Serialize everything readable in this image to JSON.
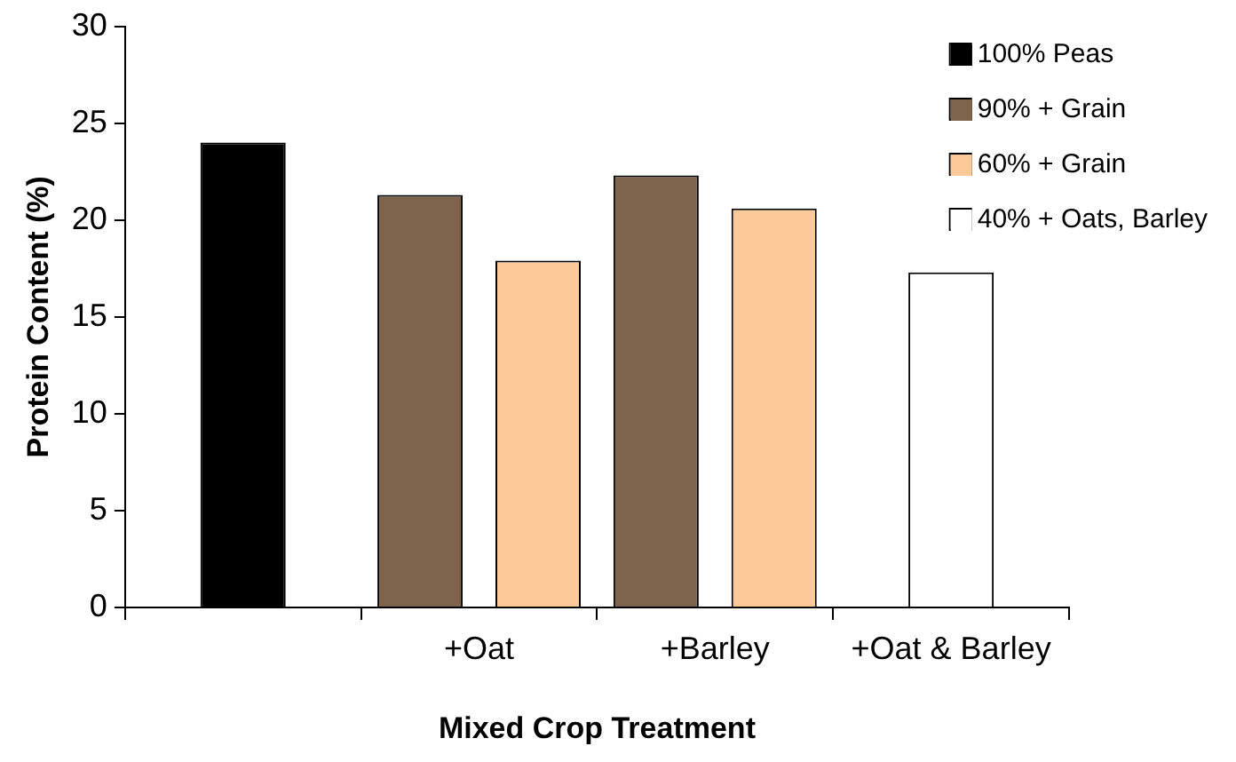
{
  "chart_data": {
    "type": "bar",
    "xlabel": "Mixed Crop Treatment",
    "ylabel": "Protein Content (%)",
    "categories": [
      null,
      "+Oat",
      "+Barley",
      "+Oat & Barley"
    ],
    "series": [
      {
        "name": "100% Peas",
        "color": "#000000",
        "values": [
          24.0,
          null,
          null,
          null
        ]
      },
      {
        "name": "90% + Grain",
        "color": "#7e644c",
        "values": [
          null,
          21.3,
          22.3,
          null
        ]
      },
      {
        "name": "60% + Grain",
        "color": "#fdc998",
        "values": [
          null,
          17.9,
          20.6,
          null
        ]
      },
      {
        "name": "40% + Oats, Barley",
        "color": "#ffffff",
        "values": [
          null,
          null,
          null,
          17.3
        ]
      }
    ],
    "ylim": [
      0,
      30
    ],
    "yticks": [
      0,
      5,
      10,
      15,
      20,
      25,
      30
    ],
    "grid": false,
    "legend": "top right"
  }
}
